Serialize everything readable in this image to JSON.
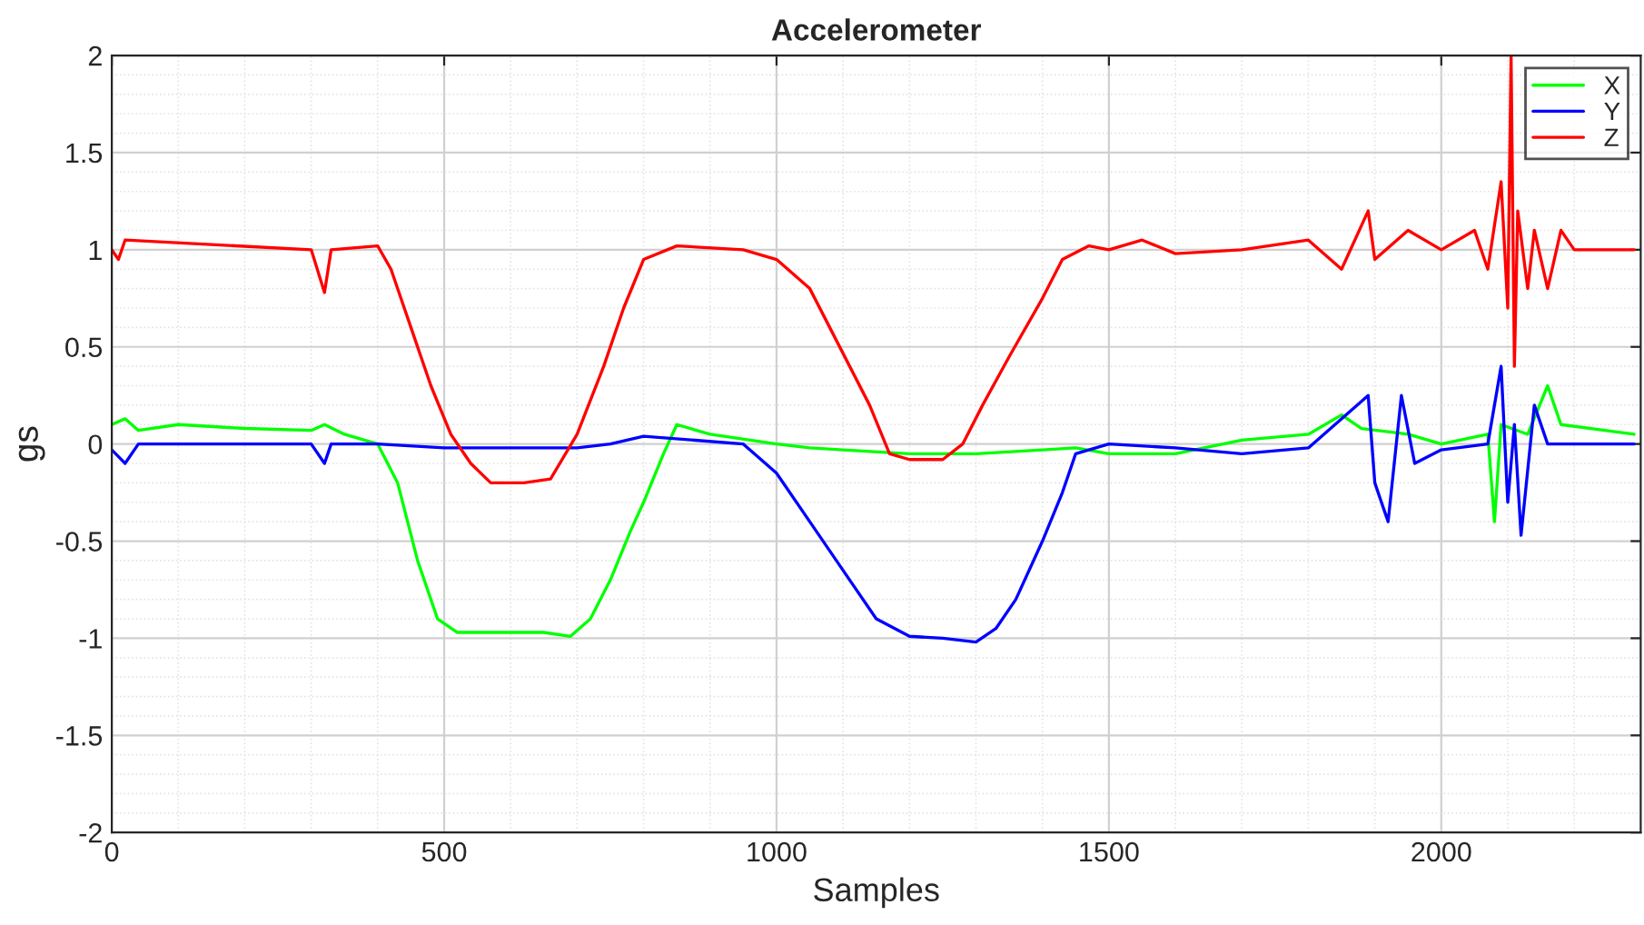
{
  "chart_data": {
    "type": "line",
    "title": "Accelerometer",
    "xlabel": "Samples",
    "ylabel": "gs",
    "xlim": [
      0,
      2300
    ],
    "xticks": [
      0,
      500,
      1000,
      1500,
      2000
    ],
    "ylim": [
      -2,
      2
    ],
    "yticks": [
      -2,
      -1.5,
      -1,
      -0.5,
      0,
      0.5,
      1,
      1.5,
      2
    ],
    "grid": true,
    "legend": "top right",
    "line_style": "solid",
    "marker": "none",
    "series": [
      {
        "name": "X",
        "color": "#00ff00",
        "x": [
          0,
          20,
          40,
          100,
          200,
          300,
          320,
          350,
          400,
          430,
          460,
          490,
          520,
          600,
          650,
          690,
          720,
          750,
          780,
          800,
          830,
          850,
          900,
          1000,
          1050,
          1100,
          1200,
          1300,
          1400,
          1450,
          1500,
          1600,
          1700,
          1800,
          1850,
          1880,
          1950,
          2000,
          2070,
          2080,
          2090,
          2130,
          2160,
          2180,
          2290
        ],
        "values": [
          0.1,
          0.13,
          0.07,
          0.1,
          0.08,
          0.07,
          0.1,
          0.05,
          0.0,
          -0.2,
          -0.6,
          -0.9,
          -0.97,
          -0.97,
          -0.97,
          -0.99,
          -0.9,
          -0.7,
          -0.45,
          -0.3,
          -0.05,
          0.1,
          0.05,
          0.0,
          -0.02,
          -0.03,
          -0.05,
          -0.05,
          -0.03,
          -0.02,
          -0.05,
          -0.05,
          0.02,
          0.05,
          0.15,
          0.08,
          0.05,
          0.0,
          0.05,
          -0.4,
          0.1,
          0.05,
          0.3,
          0.1,
          0.05
        ]
      },
      {
        "name": "Y",
        "color": "#0000ff",
        "x": [
          0,
          20,
          40,
          300,
          320,
          330,
          400,
          500,
          700,
          750,
          800,
          950,
          1000,
          1050,
          1100,
          1150,
          1200,
          1250,
          1300,
          1330,
          1360,
          1400,
          1430,
          1450,
          1500,
          1600,
          1700,
          1800,
          1890,
          1900,
          1920,
          1940,
          1960,
          2000,
          2070,
          2090,
          2100,
          2110,
          2120,
          2140,
          2160,
          2290
        ],
        "values": [
          -0.03,
          -0.1,
          0.0,
          0.0,
          -0.1,
          0.0,
          0.0,
          -0.02,
          -0.02,
          0.0,
          0.04,
          0.0,
          -0.15,
          -0.4,
          -0.65,
          -0.9,
          -0.99,
          -1.0,
          -1.02,
          -0.95,
          -0.8,
          -0.5,
          -0.25,
          -0.05,
          0.0,
          -0.02,
          -0.05,
          -0.02,
          0.25,
          -0.2,
          -0.4,
          0.25,
          -0.1,
          -0.03,
          0.0,
          0.4,
          -0.3,
          0.1,
          -0.47,
          0.2,
          0.0,
          0.0
        ]
      },
      {
        "name": "Z",
        "color": "#ff0000",
        "x": [
          0,
          10,
          20,
          300,
          320,
          330,
          400,
          420,
          450,
          480,
          510,
          540,
          570,
          620,
          660,
          700,
          740,
          770,
          800,
          850,
          950,
          1000,
          1050,
          1080,
          1110,
          1140,
          1170,
          1200,
          1250,
          1280,
          1310,
          1350,
          1400,
          1430,
          1470,
          1500,
          1550,
          1600,
          1700,
          1800,
          1850,
          1890,
          1900,
          1950,
          2000,
          2050,
          2070,
          2090,
          2100,
          2105,
          2110,
          2115,
          2130,
          2140,
          2160,
          2180,
          2200,
          2290
        ],
        "values": [
          1.0,
          0.95,
          1.05,
          1.0,
          0.78,
          1.0,
          1.02,
          0.9,
          0.6,
          0.3,
          0.05,
          -0.1,
          -0.2,
          -0.2,
          -0.18,
          0.05,
          0.4,
          0.7,
          0.95,
          1.02,
          1.0,
          0.95,
          0.8,
          0.6,
          0.4,
          0.2,
          -0.05,
          -0.08,
          -0.08,
          0.0,
          0.2,
          0.45,
          0.75,
          0.95,
          1.02,
          1.0,
          1.05,
          0.98,
          1.0,
          1.05,
          0.9,
          1.2,
          0.95,
          1.1,
          1.0,
          1.1,
          0.9,
          1.35,
          0.7,
          2.0,
          0.4,
          1.2,
          0.8,
          1.1,
          0.8,
          1.1,
          1.0,
          1.0
        ]
      }
    ]
  }
}
